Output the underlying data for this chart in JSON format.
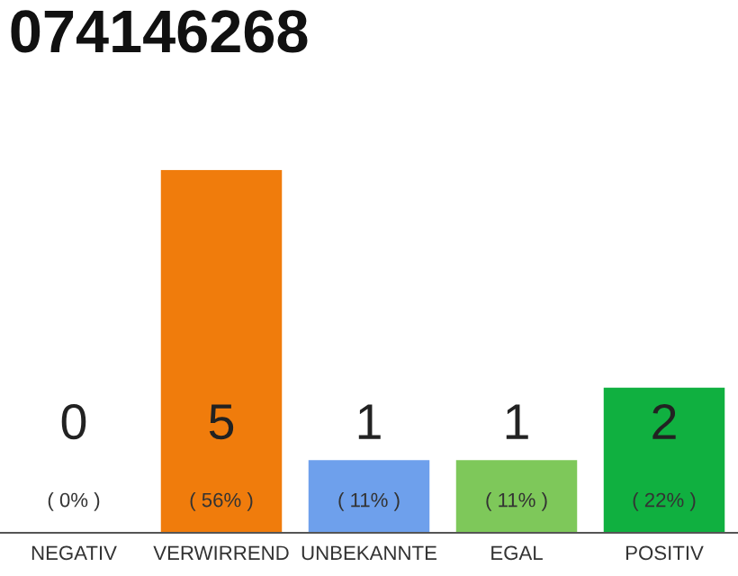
{
  "chart_data": {
    "type": "bar",
    "title": "074146268",
    "categories": [
      "NEGATIV",
      "VERWIRREND",
      "UNBEKANNTE",
      "EGAL",
      "POSITIV"
    ],
    "values": [
      0,
      5,
      1,
      1,
      2
    ],
    "colors": [
      "#888888",
      "#f07c0c",
      "#6ea0ec",
      "#7ec85a",
      "#10b040"
    ],
    "value_labels": [
      "0\n( 0% )",
      "5\n( 56% )",
      "1\n( 11% )",
      "1\n( 11% )",
      "2\n( 22% )"
    ],
    "grid": false,
    "legend": false
  }
}
